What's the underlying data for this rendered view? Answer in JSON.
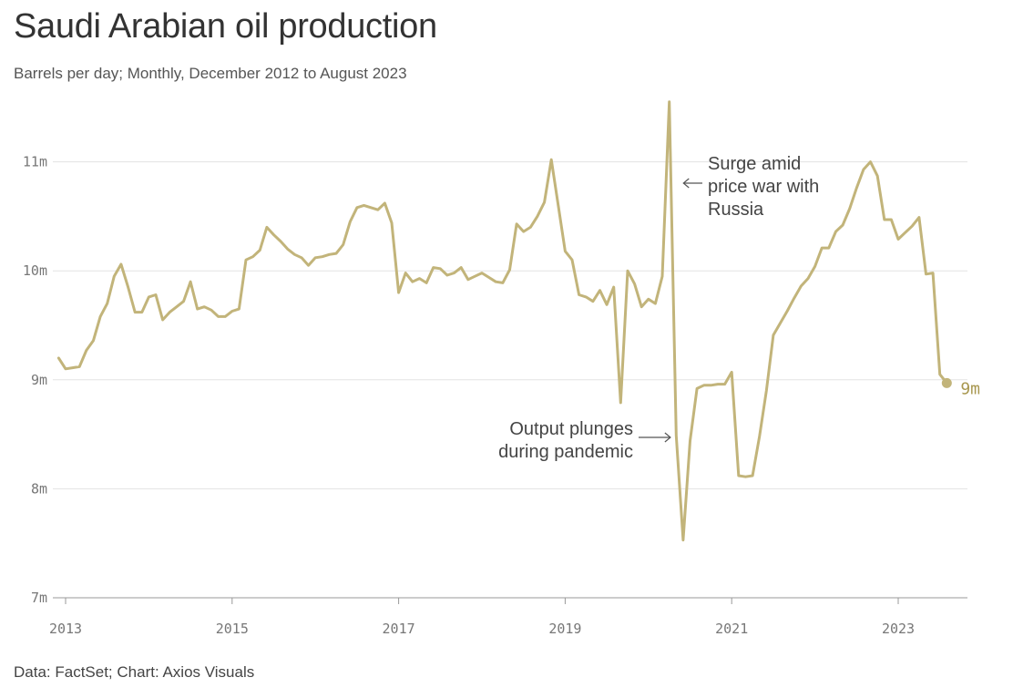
{
  "chart_data": {
    "type": "line",
    "title": "Saudi Arabian oil production",
    "subtitle": "Barrels per day; Monthly, December 2012 to August 2023",
    "source": "Data: FactSet; Chart: Axios Visuals",
    "ylim": [
      7,
      11.5
    ],
    "y_ticks": [
      {
        "value": 7,
        "label": "7m"
      },
      {
        "value": 8,
        "label": "8m"
      },
      {
        "value": 9,
        "label": "9m"
      },
      {
        "value": 10,
        "label": "10m"
      },
      {
        "value": 11,
        "label": "11m"
      }
    ],
    "x_ticks": [
      {
        "value": 2013,
        "label": "2013"
      },
      {
        "value": 2015,
        "label": "2015"
      },
      {
        "value": 2017,
        "label": "2017"
      },
      {
        "value": 2019,
        "label": "2019"
      },
      {
        "value": 2021,
        "label": "2021"
      },
      {
        "value": 2023,
        "label": "2023"
      }
    ],
    "grid": true,
    "line_color": "#c2b47a",
    "series": [
      {
        "start": "2012-12",
        "frequency": "monthly",
        "values": [
          9.2,
          9.1,
          9.11,
          9.12,
          9.27,
          9.36,
          9.58,
          9.7,
          9.95,
          10.06,
          9.85,
          9.62,
          9.62,
          9.76,
          9.78,
          9.55,
          9.62,
          9.67,
          9.72,
          9.9,
          9.65,
          9.67,
          9.64,
          9.58,
          9.58,
          9.63,
          9.65,
          10.1,
          10.13,
          10.19,
          10.4,
          10.33,
          10.27,
          10.2,
          10.15,
          10.12,
          10.05,
          10.12,
          10.13,
          10.15,
          10.16,
          10.24,
          10.45,
          10.58,
          10.6,
          10.58,
          10.56,
          10.62,
          10.44,
          9.8,
          9.98,
          9.9,
          9.93,
          9.89,
          10.03,
          10.02,
          9.96,
          9.98,
          10.03,
          9.92,
          9.95,
          9.98,
          9.94,
          9.9,
          9.89,
          10.01,
          10.43,
          10.36,
          10.4,
          10.5,
          10.63,
          11.02,
          10.6,
          10.18,
          10.1,
          9.78,
          9.76,
          9.72,
          9.82,
          9.69,
          9.85,
          8.79,
          10.0,
          9.88,
          9.67,
          9.74,
          9.7,
          9.95,
          11.55,
          8.49,
          7.53,
          8.44,
          8.92,
          8.95,
          8.95,
          8.96,
          8.96,
          9.07,
          8.12,
          8.11,
          8.12,
          8.48,
          8.9,
          9.41,
          9.52,
          9.63,
          9.75,
          9.86,
          9.93,
          10.04,
          10.21,
          10.21,
          10.36,
          10.42,
          10.57,
          10.76,
          10.93,
          11.0,
          10.87,
          10.47,
          10.47,
          10.29,
          10.35,
          10.41,
          10.49,
          9.97,
          9.98,
          9.05,
          8.97
        ]
      }
    ],
    "end_label": "9m",
    "annotations": [
      {
        "lines": [
          "Surge amid",
          "price war with",
          "Russia"
        ],
        "date": "2020-05"
      },
      {
        "lines": [
          "Output plunges",
          "during pandemic"
        ],
        "date": "2020-06"
      }
    ]
  }
}
